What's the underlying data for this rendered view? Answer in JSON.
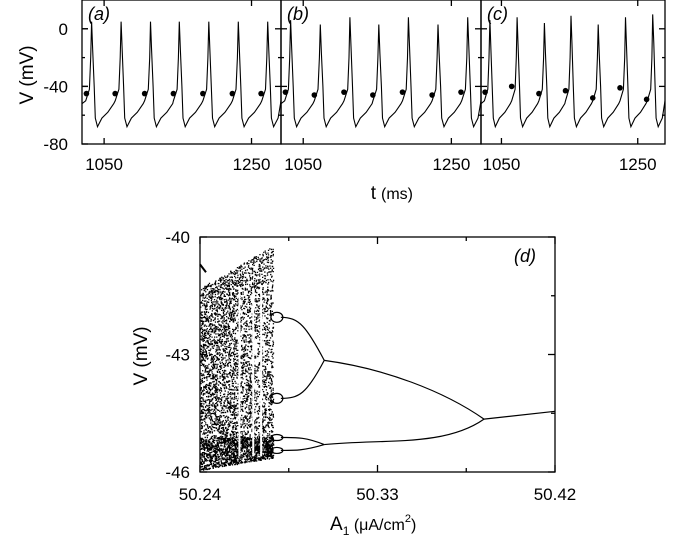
{
  "colors": {
    "ink": "#000000",
    "background": "#ffffff"
  },
  "chart_data": [
    {
      "id": "a",
      "type": "line",
      "panel_label": "(a)",
      "ylabel": "V (mV)",
      "xlim": [
        1020,
        1290
      ],
      "ylim": [
        -80,
        20
      ],
      "x_ticks": [
        "1050",
        "1250"
      ],
      "y_ticks": [
        "0",
        "-40",
        "-80"
      ],
      "grid": false,
      "series": [
        {
          "spike_times": [
            1033,
            1073,
            1113,
            1152,
            1192,
            1232,
            1272
          ],
          "spike_peaks": [
            5,
            5,
            5,
            5,
            5,
            5,
            5
          ],
          "trough": -68,
          "marker_times": [
            1026,
            1065,
            1105,
            1144,
            1184,
            1224,
            1263
          ],
          "marker_values": [
            -45,
            -45,
            -45,
            -45,
            -45,
            -45,
            -45
          ]
        }
      ]
    },
    {
      "id": "b",
      "type": "line",
      "panel_label": "(b)",
      "xlim": [
        1020,
        1290
      ],
      "ylim": [
        -80,
        20
      ],
      "x_ticks": [
        "1050",
        "1250"
      ],
      "grid": false,
      "series": [
        {
          "spike_times": [
            1033,
            1073,
            1113,
            1152,
            1192,
            1232,
            1272
          ],
          "spike_peaks": [
            6,
            3,
            8,
            3,
            8,
            3,
            8
          ],
          "trough": -68,
          "marker_times": [
            1026,
            1065,
            1105,
            1144,
            1184,
            1224,
            1263
          ],
          "marker_values": [
            -44,
            -46,
            -44,
            -46,
            -44,
            -46,
            -44
          ]
        }
      ]
    },
    {
      "id": "c",
      "type": "line",
      "panel_label": "(c)",
      "xlim": [
        1020,
        1290
      ],
      "ylim": [
        -80,
        20
      ],
      "x_ticks": [
        "1050",
        "1250"
      ],
      "grid": false,
      "series": [
        {
          "spike_times": [
            1033,
            1073,
            1113,
            1152,
            1192,
            1232,
            1272
          ],
          "spike_peaks": [
            6,
            8,
            4,
            9,
            3,
            8,
            10
          ],
          "trough": -68,
          "marker_times": [
            1026,
            1065,
            1105,
            1144,
            1184,
            1224,
            1263
          ],
          "marker_values": [
            -44,
            -40,
            -45,
            -43,
            -48,
            -41,
            -49
          ]
        }
      ]
    },
    {
      "id": "d",
      "type": "scatter",
      "panel_label": "(d)",
      "title": "",
      "xlabel": "A1 (μA/cm2)",
      "ylabel": "V (mV)",
      "xlim": [
        50.24,
        50.42
      ],
      "ylim": [
        -46,
        -40
      ],
      "x_ticks": [
        "50.24",
        "50.33",
        "50.42"
      ],
      "y_ticks": [
        "-40",
        "-43",
        "-46"
      ],
      "grid": false,
      "bifurcation": {
        "period1_branch": {
          "x_start": 50.384,
          "x_end": 50.42,
          "value_at_start": -44.65,
          "value_at_end": -44.45
        },
        "period2_split_at": 50.384,
        "period2_upper_at": [
          50.303,
          -43.15
        ],
        "period2_lower_at": [
          50.303,
          -45.3
        ],
        "period4_split_upper": [
          50.303,
          -43.15
        ],
        "period4_split_lower": [
          50.303,
          -45.3
        ],
        "period4_upper_range": [
          -42.05,
          -44.12
        ],
        "period4_lower_range": [
          -45.12,
          -45.45
        ],
        "period8_split_x": 50.281,
        "chaos_x_range": [
          50.24,
          50.281
        ],
        "chaos_upper_band": [
          -41.0,
          -45.0
        ],
        "chaos_lower_band": [
          -45.1,
          -45.95
        ],
        "chaos_top_at_left": -40.7,
        "periodic_windows_x": [
          50.26,
          50.267,
          50.271
        ]
      }
    }
  ],
  "shared": {
    "t_label_main": "t",
    "t_label_unit": "(ms)",
    "a1_label_main": "A",
    "a1_label_sub": "1",
    "a1_label_unit": " (μA/cm",
    "a1_label_sup": "2",
    "a1_label_close": ")"
  }
}
